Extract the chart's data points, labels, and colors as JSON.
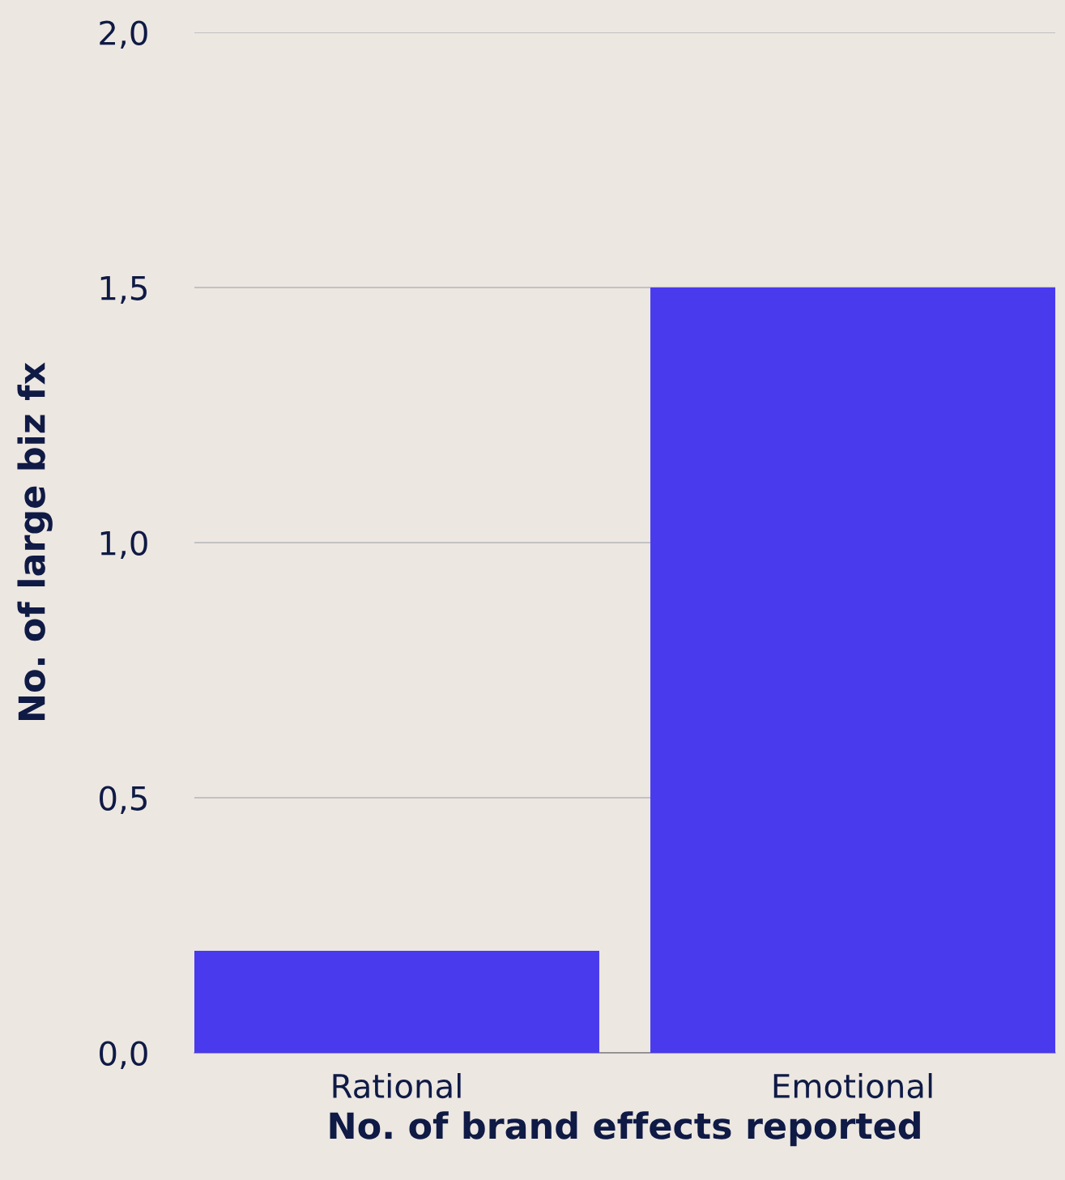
{
  "chart_data": {
    "type": "bar",
    "xlabel": "No. of brand effects reported",
    "ylabel": "No. of large biz fx",
    "categories": [
      "Rational",
      "Emotional"
    ],
    "values": [
      0.2,
      1.5
    ],
    "color": "#4a3aee",
    "ylim": [
      0,
      2.0
    ],
    "yticks": [
      {
        "value": 0,
        "label": "0,0"
      },
      {
        "value": 0.5,
        "label": "0,5"
      },
      {
        "value": 1.0,
        "label": "1,0"
      },
      {
        "value": 1.5,
        "label": "1,5"
      },
      {
        "value": 2.0,
        "label": "2,0"
      }
    ],
    "grid": "y"
  }
}
